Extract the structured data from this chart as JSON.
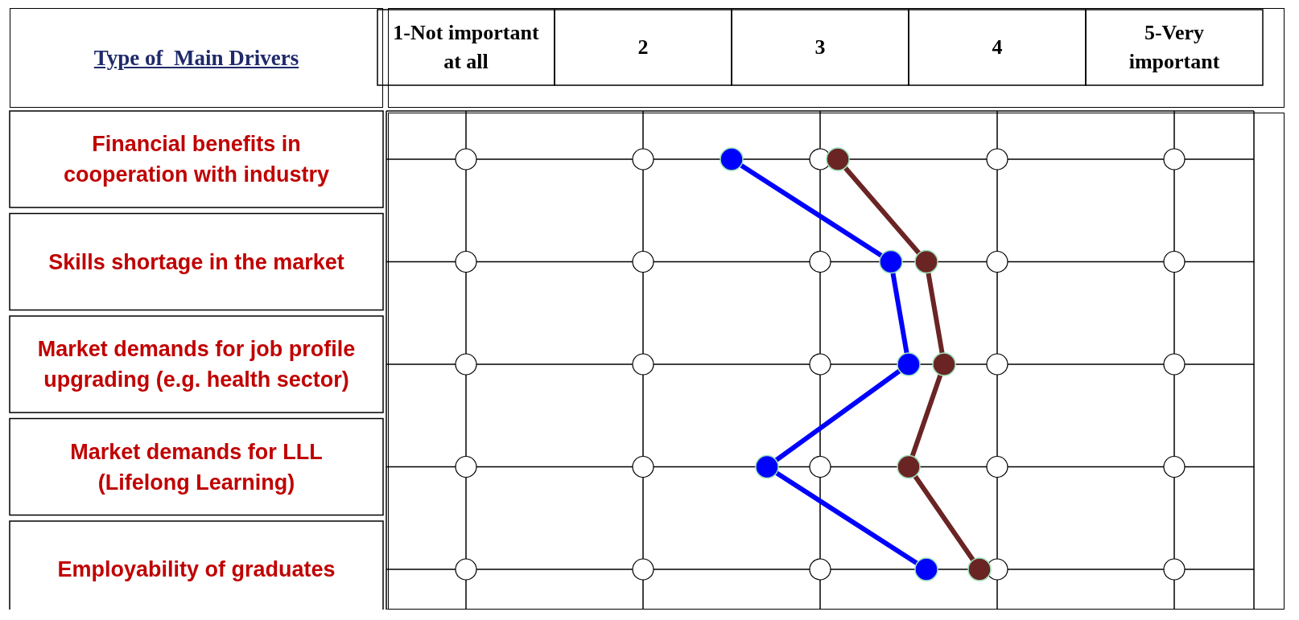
{
  "chart_data": {
    "type": "line",
    "ylabel": "Type of  Main Drivers",
    "categories": [
      "Financial benefits in cooperation with industry",
      "Skills shortage in the market",
      "Market demands for job profile upgrading (e.g. health sector)",
      "Market demands for LLL (Lifelong Learning)",
      "Employability of graduates"
    ],
    "series": [
      {
        "color": "#0000ff",
        "values": [
          2.5,
          3.4,
          3.5,
          2.7,
          3.6
        ]
      },
      {
        "color": "#6b2424",
        "values": [
          3.1,
          3.6,
          3.7,
          3.5,
          3.9
        ]
      }
    ],
    "xlim": [
      0.55,
      5.45
    ],
    "xticks": [
      {
        "value": 1,
        "label": "1-Not important at all"
      },
      2,
      3,
      4,
      {
        "value": 5,
        "label": "5-Very important"
      }
    ],
    "orientation": "horizontal",
    "grid": true,
    "marker": "circle",
    "line_style": "solid"
  }
}
